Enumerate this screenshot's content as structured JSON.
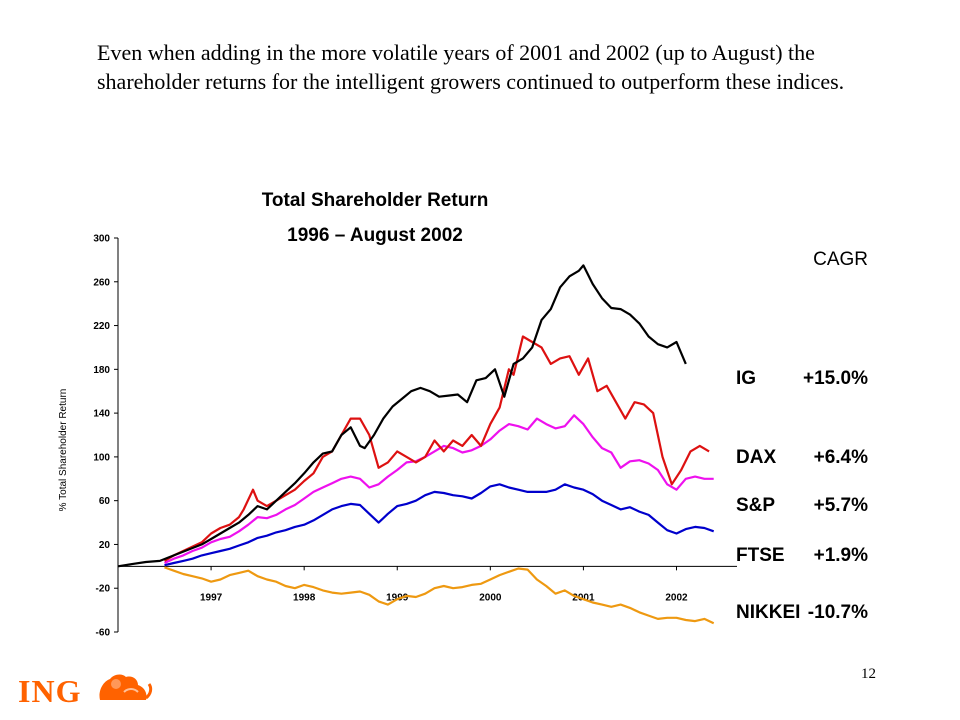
{
  "slide": {
    "intro_text": "Even when adding in the more volatile years of 2001 and 2002 (up to August) the shareholder returns for the intelligent growers continued to outperform these indices.",
    "page_number": "12",
    "logo_text": "ING"
  },
  "chart_data": {
    "type": "line",
    "title": "Total Shareholder Return",
    "subtitle": "1996 – August 2002",
    "ylabel": "% Total Shareholder Return",
    "ylim": [
      -60,
      300
    ],
    "yticks": [
      300,
      260,
      220,
      180,
      140,
      100,
      60,
      20,
      -20,
      -60
    ],
    "ytick_labels": [
      "300",
      "260",
      "220",
      "180",
      "140",
      "100",
      "60",
      "20",
      "-20",
      "-60"
    ],
    "xlim": [
      1996.0,
      2002.65
    ],
    "xticks": [
      1997,
      1998,
      1999,
      2000,
      2001,
      2002
    ],
    "xtick_labels": [
      "1997",
      "1998",
      "1999",
      "2000",
      "2001",
      "2002"
    ],
    "legend_title": "CAGR",
    "grid": false,
    "series": [
      {
        "name": "IG",
        "cagr": "+15.0%",
        "color": "#000000",
        "x": [
          1996.0,
          1996.15,
          1996.3,
          1996.45,
          1996.6,
          1996.75,
          1996.9,
          1997.0,
          1997.1,
          1997.2,
          1997.3,
          1997.4,
          1997.5,
          1997.6,
          1997.7,
          1997.8,
          1997.9,
          1998.0,
          1998.1,
          1998.2,
          1998.3,
          1998.4,
          1998.5,
          1998.6,
          1998.65,
          1998.75,
          1998.85,
          1998.95,
          1999.05,
          1999.15,
          1999.25,
          1999.35,
          1999.45,
          1999.55,
          1999.65,
          1999.75,
          1999.85,
          1999.95,
          2000.05,
          2000.15,
          2000.25,
          2000.35,
          2000.45,
          2000.55,
          2000.65,
          2000.75,
          2000.85,
          2000.95,
          2001.0,
          2001.1,
          2001.2,
          2001.3,
          2001.4,
          2001.5,
          2001.6,
          2001.7,
          2001.8,
          2001.9,
          2002.0,
          2002.1
        ],
        "y": [
          0,
          2,
          4,
          5,
          10,
          15,
          20,
          25,
          30,
          35,
          40,
          47,
          55,
          52,
          60,
          68,
          76,
          85,
          95,
          103,
          105,
          120,
          127,
          110,
          108,
          120,
          135,
          146,
          153,
          160,
          163,
          160,
          155,
          156,
          157,
          150,
          170,
          172,
          180,
          155,
          185,
          190,
          200,
          225,
          235,
          255,
          265,
          270,
          275,
          258,
          245,
          236,
          235,
          230,
          222,
          210,
          203,
          200,
          205,
          185
        ]
      },
      {
        "name": "DAX",
        "cagr": "+6.4%",
        "color": "#dd1111",
        "x": [
          1996.5,
          1996.6,
          1996.7,
          1996.8,
          1996.9,
          1997.0,
          1997.1,
          1997.2,
          1997.3,
          1997.35,
          1997.45,
          1997.5,
          1997.6,
          1997.7,
          1997.8,
          1997.9,
          1998.0,
          1998.1,
          1998.2,
          1998.3,
          1998.4,
          1998.5,
          1998.6,
          1998.7,
          1998.8,
          1998.9,
          1999.0,
          1999.1,
          1999.2,
          1999.3,
          1999.4,
          1999.5,
          1999.6,
          1999.7,
          1999.8,
          1999.9,
          2000.0,
          2000.1,
          2000.2,
          2000.25,
          2000.35,
          2000.45,
          2000.55,
          2000.65,
          2000.75,
          2000.85,
          2000.95,
          2001.05,
          2001.15,
          2001.25,
          2001.35,
          2001.45,
          2001.55,
          2001.65,
          2001.75,
          2001.85,
          2001.95,
          2002.05,
          2002.15,
          2002.25,
          2002.35
        ],
        "y": [
          5,
          10,
          14,
          18,
          22,
          30,
          35,
          38,
          45,
          52,
          70,
          60,
          55,
          60,
          65,
          70,
          78,
          85,
          100,
          105,
          120,
          135,
          135,
          120,
          90,
          95,
          105,
          100,
          95,
          100,
          115,
          105,
          115,
          110,
          120,
          110,
          130,
          145,
          180,
          175,
          210,
          205,
          200,
          185,
          190,
          192,
          175,
          190,
          160,
          165,
          150,
          135,
          150,
          148,
          140,
          100,
          75,
          88,
          105,
          110,
          105
        ]
      },
      {
        "name": "S&P",
        "cagr": "+5.7%",
        "color": "#ee11ee",
        "x": [
          1996.5,
          1996.6,
          1996.7,
          1996.8,
          1996.9,
          1997.0,
          1997.1,
          1997.2,
          1997.3,
          1997.4,
          1997.5,
          1997.6,
          1997.7,
          1997.8,
          1997.9,
          1998.0,
          1998.1,
          1998.2,
          1998.3,
          1998.4,
          1998.5,
          1998.6,
          1998.7,
          1998.8,
          1998.9,
          1999.0,
          1999.1,
          1999.2,
          1999.3,
          1999.4,
          1999.5,
          1999.6,
          1999.7,
          1999.8,
          1999.9,
          2000.0,
          2000.1,
          2000.2,
          2000.3,
          2000.4,
          2000.5,
          2000.6,
          2000.7,
          2000.8,
          2000.9,
          2001.0,
          2001.1,
          2001.2,
          2001.3,
          2001.4,
          2001.5,
          2001.6,
          2001.7,
          2001.8,
          2001.9,
          2002.0,
          2002.1,
          2002.2,
          2002.3,
          2002.4
        ],
        "y": [
          3,
          7,
          10,
          14,
          17,
          22,
          25,
          27,
          32,
          38,
          45,
          44,
          47,
          52,
          56,
          62,
          68,
          72,
          76,
          80,
          82,
          80,
          72,
          75,
          82,
          88,
          95,
          96,
          100,
          105,
          110,
          108,
          104,
          106,
          110,
          116,
          124,
          130,
          128,
          125,
          135,
          130,
          126,
          128,
          138,
          130,
          118,
          108,
          104,
          90,
          96,
          97,
          94,
          88,
          75,
          70,
          80,
          82,
          80,
          80
        ]
      },
      {
        "name": "FTSE",
        "cagr": "+1.9%",
        "color": "#0000cc",
        "x": [
          1996.5,
          1996.6,
          1996.7,
          1996.8,
          1996.9,
          1997.0,
          1997.1,
          1997.2,
          1997.3,
          1997.4,
          1997.5,
          1997.6,
          1997.7,
          1997.8,
          1997.9,
          1998.0,
          1998.1,
          1998.2,
          1998.3,
          1998.4,
          1998.5,
          1998.6,
          1998.7,
          1998.8,
          1998.9,
          1999.0,
          1999.1,
          1999.2,
          1999.3,
          1999.4,
          1999.5,
          1999.6,
          1999.7,
          1999.8,
          1999.9,
          2000.0,
          2000.1,
          2000.2,
          2000.3,
          2000.4,
          2000.5,
          2000.6,
          2000.7,
          2000.8,
          2000.9,
          2001.0,
          2001.1,
          2001.2,
          2001.3,
          2001.4,
          2001.5,
          2001.6,
          2001.7,
          2001.8,
          2001.9,
          2002.0,
          2002.1,
          2002.2,
          2002.3,
          2002.4
        ],
        "y": [
          1,
          3,
          5,
          7,
          10,
          12,
          14,
          16,
          19,
          22,
          26,
          28,
          31,
          33,
          36,
          38,
          42,
          47,
          52,
          55,
          57,
          56,
          48,
          40,
          48,
          55,
          57,
          60,
          65,
          68,
          67,
          65,
          64,
          62,
          67,
          73,
          75,
          72,
          70,
          68,
          68,
          68,
          70,
          75,
          72,
          70,
          66,
          60,
          56,
          52,
          54,
          50,
          47,
          40,
          33,
          30,
          34,
          36,
          35,
          32
        ]
      },
      {
        "name": "NIKKEI",
        "cagr": "-10.7%",
        "color": "#ee9911",
        "x": [
          1996.5,
          1996.6,
          1996.7,
          1996.8,
          1996.9,
          1997.0,
          1997.1,
          1997.2,
          1997.3,
          1997.4,
          1997.5,
          1997.6,
          1997.7,
          1997.8,
          1997.9,
          1998.0,
          1998.1,
          1998.2,
          1998.3,
          1998.4,
          1998.5,
          1998.6,
          1998.7,
          1998.8,
          1998.9,
          1999.0,
          1999.1,
          1999.2,
          1999.3,
          1999.4,
          1999.5,
          1999.6,
          1999.7,
          1999.8,
          1999.9,
          2000.0,
          2000.1,
          2000.2,
          2000.3,
          2000.4,
          2000.5,
          2000.6,
          2000.7,
          2000.8,
          2000.9,
          2001.0,
          2001.1,
          2001.2,
          2001.3,
          2001.4,
          2001.5,
          2001.6,
          2001.7,
          2001.8,
          2001.9,
          2002.0,
          2002.1,
          2002.2,
          2002.3,
          2002.4
        ],
        "y": [
          -1,
          -4,
          -7,
          -9,
          -11,
          -14,
          -12,
          -8,
          -6,
          -4,
          -9,
          -12,
          -14,
          -18,
          -20,
          -17,
          -19,
          -22,
          -24,
          -25,
          -24,
          -23,
          -26,
          -32,
          -35,
          -30,
          -27,
          -28,
          -25,
          -20,
          -18,
          -20,
          -19,
          -17,
          -16,
          -12,
          -8,
          -5,
          -2,
          -3,
          -12,
          -18,
          -25,
          -22,
          -27,
          -30,
          -33,
          -35,
          -37,
          -35,
          -38,
          -42,
          -45,
          -48,
          -47,
          -47,
          -49,
          -50,
          -48,
          -52
        ]
      }
    ]
  }
}
